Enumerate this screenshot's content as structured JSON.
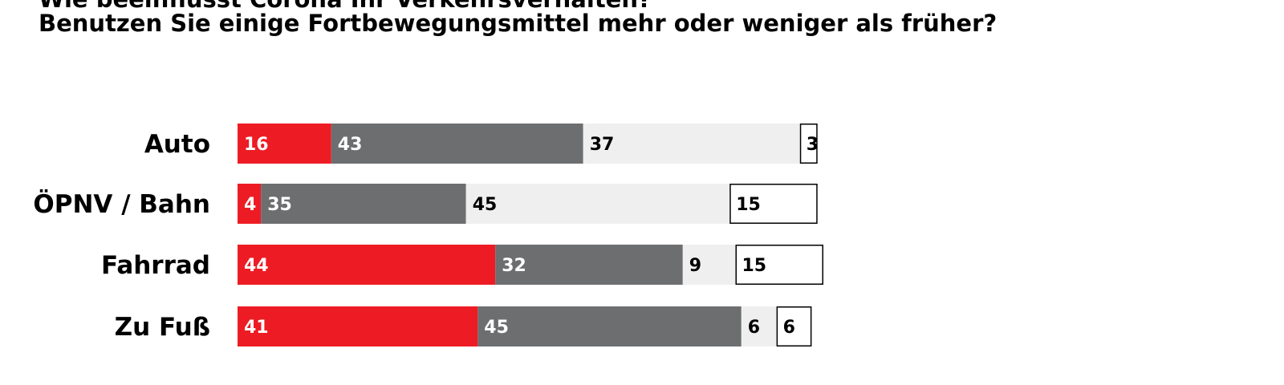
{
  "header": {
    "title_cut": "Wie beeinflusst Corona Ihr Verkehrsverhalten?",
    "title": "Benutzen Sie einige Fortbewegungsmittel mehr oder weniger als früher?"
  },
  "colors": {
    "series": [
      "#ED1C24",
      "#6D6E70",
      "#EFEFEF",
      "#FFFFFF"
    ],
    "label_on_dark": "#FFFFFF",
    "label_on_light": "#000000",
    "outline": "#000000"
  },
  "chart_data": {
    "type": "bar",
    "orientation": "horizontal",
    "stacked": true,
    "categories": [
      "Auto",
      "ÖPNV / Bahn",
      "Fahrrad",
      "Zu Fuß"
    ],
    "series": [
      {
        "values": [
          16,
          4,
          44,
          41
        ]
      },
      {
        "values": [
          43,
          35,
          32,
          45
        ]
      },
      {
        "values": [
          37,
          45,
          9,
          6
        ]
      },
      {
        "values": [
          3,
          15,
          15,
          6
        ]
      }
    ],
    "grid": false
  }
}
